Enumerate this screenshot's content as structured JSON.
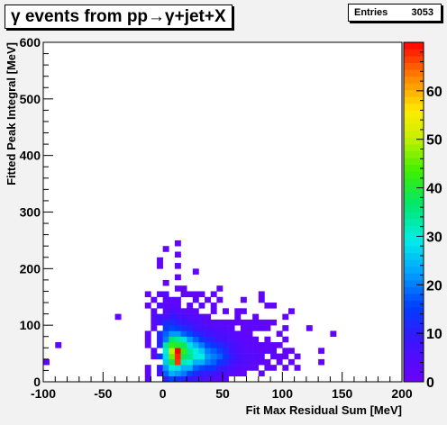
{
  "chart_data": {
    "type": "heatmap",
    "title": "γ events from pp→γ+jet+X",
    "xlabel": "Fit Max Residual Sum [MeV]",
    "ylabel": "Fitted Peak Integral [MeV]",
    "xlim": [
      -100,
      200
    ],
    "ylim": [
      0,
      600
    ],
    "x_ticks": [
      -100,
      -50,
      0,
      50,
      100,
      150,
      200
    ],
    "y_ticks": [
      0,
      100,
      200,
      300,
      400,
      500,
      600
    ],
    "zlim": [
      0,
      70
    ],
    "z_ticks": [
      0,
      10,
      20,
      30,
      40,
      50,
      60
    ],
    "stats": {
      "label": "Entries",
      "value": "3053"
    },
    "bin_size": {
      "x": 5,
      "y": 10
    },
    "cells": [
      [
        -100,
        30,
        3
      ],
      [
        -90,
        60,
        3
      ],
      [
        -40,
        110,
        2
      ],
      [
        -15,
        0,
        3
      ],
      [
        -15,
        10,
        3
      ],
      [
        -15,
        20,
        3
      ],
      [
        -15,
        60,
        2
      ],
      [
        -15,
        70,
        3
      ],
      [
        -15,
        80,
        3
      ],
      [
        -15,
        130,
        2
      ],
      [
        -15,
        150,
        2
      ],
      [
        -10,
        40,
        3
      ],
      [
        -10,
        50,
        4
      ],
      [
        -10,
        90,
        3
      ],
      [
        -10,
        100,
        4
      ],
      [
        -10,
        110,
        5
      ],
      [
        -10,
        120,
        3
      ],
      [
        -10,
        140,
        3
      ],
      [
        -5,
        10,
        6
      ],
      [
        -5,
        20,
        10
      ],
      [
        -5,
        40,
        14
      ],
      [
        -5,
        60,
        12
      ],
      [
        -5,
        70,
        11
      ],
      [
        -5,
        80,
        12
      ],
      [
        -5,
        100,
        7
      ],
      [
        -5,
        110,
        8
      ],
      [
        -5,
        130,
        5
      ],
      [
        -5,
        150,
        3
      ],
      [
        -5,
        200,
        2
      ],
      [
        -5,
        210,
        2
      ],
      [
        0,
        0,
        10
      ],
      [
        0,
        10,
        18
      ],
      [
        0,
        20,
        22
      ],
      [
        0,
        30,
        26
      ],
      [
        0,
        40,
        28
      ],
      [
        0,
        50,
        30
      ],
      [
        0,
        60,
        34
      ],
      [
        0,
        70,
        20
      ],
      [
        0,
        80,
        18
      ],
      [
        0,
        90,
        15
      ],
      [
        0,
        100,
        12
      ],
      [
        0,
        110,
        6
      ],
      [
        0,
        120,
        4
      ],
      [
        0,
        130,
        3
      ],
      [
        0,
        140,
        3
      ],
      [
        0,
        150,
        5
      ],
      [
        0,
        170,
        2
      ],
      [
        0,
        230,
        2
      ],
      [
        5,
        0,
        16
      ],
      [
        5,
        10,
        24
      ],
      [
        5,
        20,
        30
      ],
      [
        5,
        30,
        38
      ],
      [
        5,
        40,
        46
      ],
      [
        5,
        50,
        50
      ],
      [
        5,
        60,
        42
      ],
      [
        5,
        70,
        36
      ],
      [
        5,
        80,
        22
      ],
      [
        5,
        90,
        16
      ],
      [
        5,
        100,
        13
      ],
      [
        5,
        110,
        9
      ],
      [
        5,
        120,
        6
      ],
      [
        5,
        130,
        4
      ],
      [
        5,
        140,
        3
      ],
      [
        10,
        0,
        14
      ],
      [
        10,
        10,
        22
      ],
      [
        10,
        20,
        28
      ],
      [
        10,
        30,
        67
      ],
      [
        10,
        40,
        68
      ],
      [
        10,
        50,
        70
      ],
      [
        10,
        60,
        40
      ],
      [
        10,
        70,
        34
      ],
      [
        10,
        80,
        22
      ],
      [
        10,
        90,
        15
      ],
      [
        10,
        100,
        10
      ],
      [
        10,
        110,
        8
      ],
      [
        10,
        120,
        5
      ],
      [
        10,
        130,
        3
      ],
      [
        10,
        140,
        3
      ],
      [
        10,
        160,
        2
      ],
      [
        10,
        180,
        2
      ],
      [
        10,
        200,
        3
      ],
      [
        10,
        220,
        2
      ],
      [
        10,
        240,
        2
      ],
      [
        15,
        0,
        12
      ],
      [
        15,
        10,
        20
      ],
      [
        15,
        20,
        24
      ],
      [
        15,
        30,
        32
      ],
      [
        15,
        40,
        38
      ],
      [
        15,
        50,
        42
      ],
      [
        15,
        60,
        38
      ],
      [
        15,
        70,
        28
      ],
      [
        15,
        80,
        18
      ],
      [
        15,
        90,
        12
      ],
      [
        15,
        100,
        9
      ],
      [
        15,
        110,
        6
      ],
      [
        15,
        120,
        4
      ],
      [
        15,
        150,
        2
      ],
      [
        15,
        160,
        3
      ],
      [
        20,
        0,
        9
      ],
      [
        20,
        10,
        16
      ],
      [
        20,
        20,
        24
      ],
      [
        20,
        30,
        30
      ],
      [
        20,
        40,
        35
      ],
      [
        20,
        50,
        34
      ],
      [
        20,
        60,
        28
      ],
      [
        20,
        70,
        22
      ],
      [
        20,
        80,
        16
      ],
      [
        20,
        90,
        11
      ],
      [
        20,
        100,
        8
      ],
      [
        20,
        110,
        5
      ],
      [
        20,
        120,
        3
      ],
      [
        20,
        130,
        3
      ],
      [
        20,
        150,
        2
      ],
      [
        25,
        0,
        7
      ],
      [
        25,
        10,
        12
      ],
      [
        25,
        20,
        18
      ],
      [
        25,
        30,
        24
      ],
      [
        25,
        40,
        30
      ],
      [
        25,
        50,
        30
      ],
      [
        25,
        60,
        24
      ],
      [
        25,
        70,
        18
      ],
      [
        25,
        80,
        12
      ],
      [
        25,
        90,
        8
      ],
      [
        25,
        100,
        6
      ],
      [
        25,
        110,
        4
      ],
      [
        25,
        120,
        3
      ],
      [
        25,
        140,
        3
      ],
      [
        25,
        150,
        2
      ],
      [
        25,
        190,
        2
      ],
      [
        30,
        0,
        6
      ],
      [
        30,
        10,
        10
      ],
      [
        30,
        20,
        16
      ],
      [
        30,
        30,
        24
      ],
      [
        30,
        40,
        30
      ],
      [
        30,
        50,
        26
      ],
      [
        30,
        60,
        20
      ],
      [
        30,
        70,
        14
      ],
      [
        30,
        80,
        10
      ],
      [
        30,
        90,
        7
      ],
      [
        30,
        100,
        5
      ],
      [
        30,
        110,
        4
      ],
      [
        30,
        130,
        3
      ],
      [
        30,
        150,
        2
      ],
      [
        35,
        0,
        5
      ],
      [
        35,
        10,
        9
      ],
      [
        35,
        20,
        14
      ],
      [
        35,
        30,
        20
      ],
      [
        35,
        40,
        22
      ],
      [
        35,
        50,
        20
      ],
      [
        35,
        60,
        16
      ],
      [
        35,
        70,
        12
      ],
      [
        35,
        80,
        8
      ],
      [
        35,
        90,
        6
      ],
      [
        35,
        100,
        4
      ],
      [
        35,
        110,
        3
      ],
      [
        35,
        140,
        2
      ],
      [
        40,
        0,
        4
      ],
      [
        40,
        10,
        8
      ],
      [
        40,
        20,
        14
      ],
      [
        40,
        30,
        18
      ],
      [
        40,
        40,
        20
      ],
      [
        40,
        50,
        18
      ],
      [
        40,
        60,
        14
      ],
      [
        40,
        70,
        10
      ],
      [
        40,
        80,
        7
      ],
      [
        40,
        90,
        5
      ],
      [
        40,
        100,
        4
      ],
      [
        40,
        120,
        2
      ],
      [
        40,
        130,
        2
      ],
      [
        40,
        150,
        2
      ],
      [
        45,
        0,
        3
      ],
      [
        45,
        10,
        6
      ],
      [
        45,
        20,
        10
      ],
      [
        45,
        30,
        14
      ],
      [
        45,
        40,
        18
      ],
      [
        45,
        50,
        16
      ],
      [
        45,
        60,
        12
      ],
      [
        45,
        70,
        8
      ],
      [
        45,
        80,
        6
      ],
      [
        45,
        90,
        4
      ],
      [
        45,
        100,
        3
      ],
      [
        45,
        140,
        2
      ],
      [
        45,
        160,
        2
      ],
      [
        50,
        0,
        3
      ],
      [
        50,
        10,
        5
      ],
      [
        50,
        20,
        8
      ],
      [
        50,
        30,
        12
      ],
      [
        50,
        40,
        14
      ],
      [
        50,
        50,
        12
      ],
      [
        50,
        60,
        10
      ],
      [
        50,
        70,
        7
      ],
      [
        50,
        80,
        5
      ],
      [
        50,
        90,
        4
      ],
      [
        50,
        100,
        3
      ],
      [
        50,
        120,
        2
      ],
      [
        55,
        10,
        4
      ],
      [
        55,
        20,
        6
      ],
      [
        55,
        30,
        8
      ],
      [
        55,
        40,
        10
      ],
      [
        55,
        50,
        8
      ],
      [
        55,
        60,
        7
      ],
      [
        55,
        70,
        5
      ],
      [
        55,
        80,
        4
      ],
      [
        55,
        90,
        3
      ],
      [
        55,
        100,
        3
      ],
      [
        60,
        10,
        3
      ],
      [
        60,
        20,
        4
      ],
      [
        60,
        30,
        6
      ],
      [
        60,
        40,
        7
      ],
      [
        60,
        50,
        6
      ],
      [
        60,
        60,
        5
      ],
      [
        60,
        70,
        4
      ],
      [
        60,
        80,
        3
      ],
      [
        60,
        100,
        2
      ],
      [
        60,
        110,
        3
      ],
      [
        60,
        120,
        2
      ],
      [
        65,
        10,
        2
      ],
      [
        65,
        20,
        3
      ],
      [
        65,
        30,
        5
      ],
      [
        65,
        40,
        5
      ],
      [
        65,
        50,
        4
      ],
      [
        65,
        60,
        4
      ],
      [
        65,
        70,
        3
      ],
      [
        65,
        80,
        3
      ],
      [
        65,
        90,
        2
      ],
      [
        65,
        100,
        2
      ],
      [
        65,
        120,
        3
      ],
      [
        65,
        140,
        2
      ],
      [
        70,
        20,
        3
      ],
      [
        70,
        30,
        4
      ],
      [
        70,
        40,
        4
      ],
      [
        70,
        50,
        3
      ],
      [
        70,
        60,
        3
      ],
      [
        70,
        70,
        3
      ],
      [
        70,
        80,
        2
      ],
      [
        70,
        90,
        3
      ],
      [
        70,
        100,
        3
      ],
      [
        75,
        20,
        2
      ],
      [
        75,
        30,
        3
      ],
      [
        75,
        40,
        4
      ],
      [
        75,
        50,
        3
      ],
      [
        75,
        60,
        3
      ],
      [
        75,
        70,
        2
      ],
      [
        75,
        90,
        2
      ],
      [
        75,
        100,
        3
      ],
      [
        75,
        110,
        2
      ],
      [
        80,
        10,
        2
      ],
      [
        80,
        30,
        3
      ],
      [
        80,
        40,
        3
      ],
      [
        80,
        50,
        2
      ],
      [
        80,
        60,
        3
      ],
      [
        80,
        90,
        3
      ],
      [
        80,
        100,
        2
      ],
      [
        80,
        140,
        2
      ],
      [
        80,
        150,
        2
      ],
      [
        85,
        20,
        2
      ],
      [
        85,
        30,
        2
      ],
      [
        85,
        50,
        3
      ],
      [
        85,
        60,
        2
      ],
      [
        85,
        70,
        2
      ],
      [
        85,
        90,
        2
      ],
      [
        85,
        100,
        2
      ],
      [
        85,
        130,
        2
      ],
      [
        90,
        20,
        2
      ],
      [
        90,
        40,
        3
      ],
      [
        90,
        50,
        3
      ],
      [
        90,
        60,
        2
      ],
      [
        90,
        100,
        2
      ],
      [
        90,
        130,
        2
      ],
      [
        95,
        30,
        2
      ],
      [
        95,
        40,
        2
      ],
      [
        95,
        60,
        2
      ],
      [
        95,
        80,
        2
      ],
      [
        100,
        20,
        2
      ],
      [
        100,
        40,
        2
      ],
      [
        100,
        50,
        2
      ],
      [
        100,
        70,
        2
      ],
      [
        100,
        90,
        2
      ],
      [
        100,
        110,
        2
      ],
      [
        105,
        30,
        2
      ],
      [
        105,
        50,
        2
      ],
      [
        105,
        120,
        2
      ],
      [
        110,
        20,
        2
      ],
      [
        110,
        40,
        2
      ],
      [
        120,
        90,
        2
      ],
      [
        130,
        30,
        2
      ],
      [
        130,
        50,
        2
      ],
      [
        140,
        80,
        2
      ]
    ]
  }
}
